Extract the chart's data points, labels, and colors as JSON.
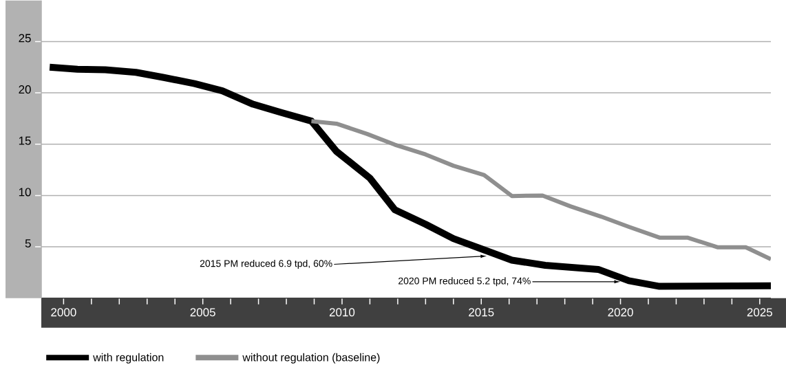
{
  "chart_data": {
    "type": "line",
    "line_style": "solid",
    "marker": "none",
    "grid": "y",
    "legend": "bottom",
    "xlim": [
      1999.2,
      2025.4
    ],
    "ylim": [
      0,
      29
    ],
    "xticks": [
      {
        "value": 2000,
        "label": "2000"
      },
      {
        "value": 2001,
        "label": null
      },
      {
        "value": 2002,
        "label": null
      },
      {
        "value": 2003,
        "label": null
      },
      {
        "value": 2004,
        "label": null
      },
      {
        "value": 2005,
        "label": "2005"
      },
      {
        "value": 2006,
        "label": null
      },
      {
        "value": 2007,
        "label": null
      },
      {
        "value": 2008,
        "label": null
      },
      {
        "value": 2009,
        "label": null
      },
      {
        "value": 2010,
        "label": "2010"
      },
      {
        "value": 2011,
        "label": null
      },
      {
        "value": 2012,
        "label": null
      },
      {
        "value": 2013,
        "label": null
      },
      {
        "value": 2014,
        "label": null
      },
      {
        "value": 2015,
        "label": "2015"
      },
      {
        "value": 2016,
        "label": null
      },
      {
        "value": 2017,
        "label": null
      },
      {
        "value": 2018,
        "label": null
      },
      {
        "value": 2019,
        "label": null
      },
      {
        "value": 2020,
        "label": "2020"
      },
      {
        "value": 2021,
        "label": null
      },
      {
        "value": 2022,
        "label": null
      },
      {
        "value": 2023,
        "label": null
      },
      {
        "value": 2024,
        "label": null
      },
      {
        "value": 2025,
        "label": "2025"
      }
    ],
    "yticks": [
      5,
      10,
      15,
      20,
      25
    ],
    "series": [
      {
        "name": "with regulation",
        "color": "#000000",
        "x": [
          1999.5,
          2000.5,
          2001.5,
          2002.6,
          2003.6,
          2004.7,
          2005.7,
          2006.8,
          2007.8,
          2008.9,
          2009.8,
          2011.0,
          2011.9,
          2013.0,
          2014.0,
          2015.1,
          2016.1,
          2017.3,
          2019.2,
          2020.3,
          2021.4,
          2025.4
        ],
        "values": [
          22.5,
          22.3,
          22.25,
          22.0,
          21.5,
          20.9,
          20.2,
          18.9,
          18.1,
          17.25,
          14.3,
          11.7,
          8.6,
          7.2,
          5.8,
          4.7,
          3.7,
          3.2,
          2.8,
          1.7,
          1.15,
          1.2
        ]
      },
      {
        "name": "without regulation (baseline)",
        "color": "#8f8f8f",
        "x": [
          2008.9,
          2009.8,
          2010.9,
          2011.9,
          2013.0,
          2014.0,
          2015.1,
          2016.1,
          2017.2,
          2018.2,
          2019.3,
          2020.3,
          2021.4,
          2022.4,
          2023.5,
          2024.5,
          2025.4
        ],
        "values": [
          17.25,
          17.0,
          16.0,
          14.95,
          14.0,
          12.9,
          12.0,
          9.95,
          10.0,
          8.95,
          7.95,
          6.95,
          5.9,
          5.9,
          4.95,
          4.95,
          3.8
        ]
      }
    ],
    "annotations": [
      {
        "text": "2015 PM reduced 6.9 tpd, 60%",
        "x": 2015.2,
        "y": 4.1
      },
      {
        "text": "2020 PM reduced 5.2 tpd, 74%",
        "x": 2020.0,
        "y": 1.6
      }
    ]
  }
}
